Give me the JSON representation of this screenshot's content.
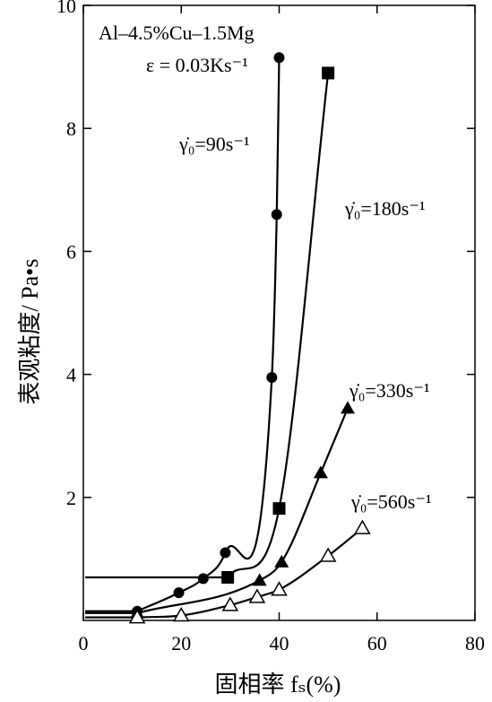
{
  "chart_data": {
    "type": "line",
    "title": "Al–4.5%Cu–1.5Mg",
    "subtitle": "ε = 0.03Ks⁻¹",
    "xlabel": "固相率 fₛ(%)",
    "ylabel": "表观粘度/ Pa•s",
    "xlim": [
      0,
      80
    ],
    "ylim": [
      0,
      10
    ],
    "x_ticks": [
      0,
      20,
      40,
      60,
      80
    ],
    "y_ticks": [
      2,
      4,
      6,
      8,
      10
    ],
    "grid": false,
    "series": [
      {
        "name": "γ̇₀=90s⁻¹",
        "marker": "filled-circle",
        "points": [
          [
            11,
            0.15
          ],
          [
            19.5,
            0.45
          ],
          [
            24.5,
            0.68
          ],
          [
            29,
            1.1
          ],
          [
            38.5,
            3.95
          ],
          [
            39.5,
            6.6
          ],
          [
            40,
            9.15
          ]
        ]
      },
      {
        "name": "γ̇₀=180s⁻¹",
        "marker": "filled-square",
        "points": [
          [
            29.5,
            0.7
          ],
          [
            40,
            1.82
          ],
          [
            50,
            8.9
          ]
        ]
      },
      {
        "name": "γ̇₀=330s⁻¹",
        "marker": "filled-triangle",
        "points": [
          [
            11,
            0.12
          ],
          [
            36,
            0.65
          ],
          [
            40.5,
            0.95
          ],
          [
            48.5,
            2.4
          ],
          [
            54,
            3.45
          ]
        ]
      },
      {
        "name": "γ̇₀=560s⁻¹",
        "marker": "open-triangle",
        "points": [
          [
            11,
            0.05
          ],
          [
            20,
            0.08
          ],
          [
            30,
            0.25
          ],
          [
            35.5,
            0.38
          ],
          [
            40,
            0.5
          ],
          [
            50,
            1.05
          ],
          [
            57,
            1.5
          ]
        ]
      }
    ]
  }
}
